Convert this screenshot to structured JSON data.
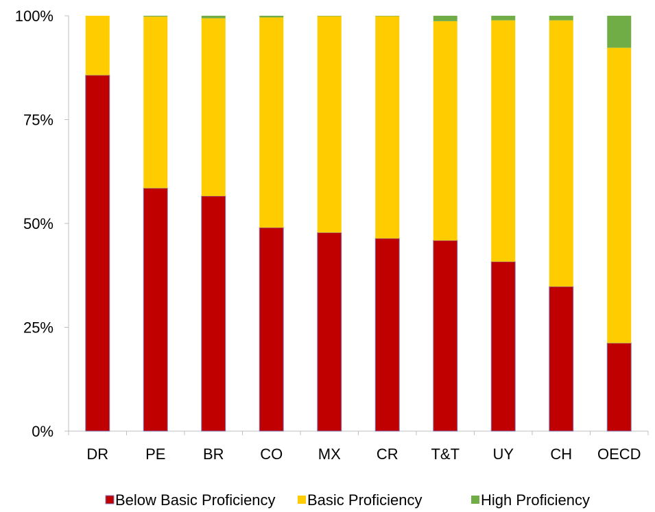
{
  "chart_data": {
    "type": "bar",
    "stacked": true,
    "categories": [
      "DR",
      "PE",
      "BR",
      "CO",
      "MX",
      "CR",
      "T&T",
      "UY",
      "CH",
      "OECD"
    ],
    "series": [
      {
        "name": "Below Basic Proficiency",
        "color": "#C00000",
        "values": [
          85.7,
          58.5,
          56.6,
          49.0,
          47.8,
          46.4,
          45.9,
          40.8,
          34.8,
          21.2
        ]
      },
      {
        "name": "Basic Proficiency",
        "color": "#FFCC00",
        "values": [
          14.3,
          41.3,
          42.8,
          50.6,
          52.1,
          53.5,
          52.8,
          58.1,
          64.1,
          71.1
        ]
      },
      {
        "name": "High Proficiency",
        "color": "#70AD47",
        "values": [
          0.0,
          0.2,
          0.6,
          0.4,
          0.1,
          0.1,
          1.3,
          1.1,
          1.1,
          7.7
        ]
      }
    ],
    "ylim": [
      0,
      100
    ],
    "yticks": [
      "0%",
      "25%",
      "50%",
      "75%",
      "100%"
    ],
    "ytick_values": [
      0,
      25,
      50,
      75,
      100
    ],
    "legend_position": "bottom",
    "grid": false
  }
}
